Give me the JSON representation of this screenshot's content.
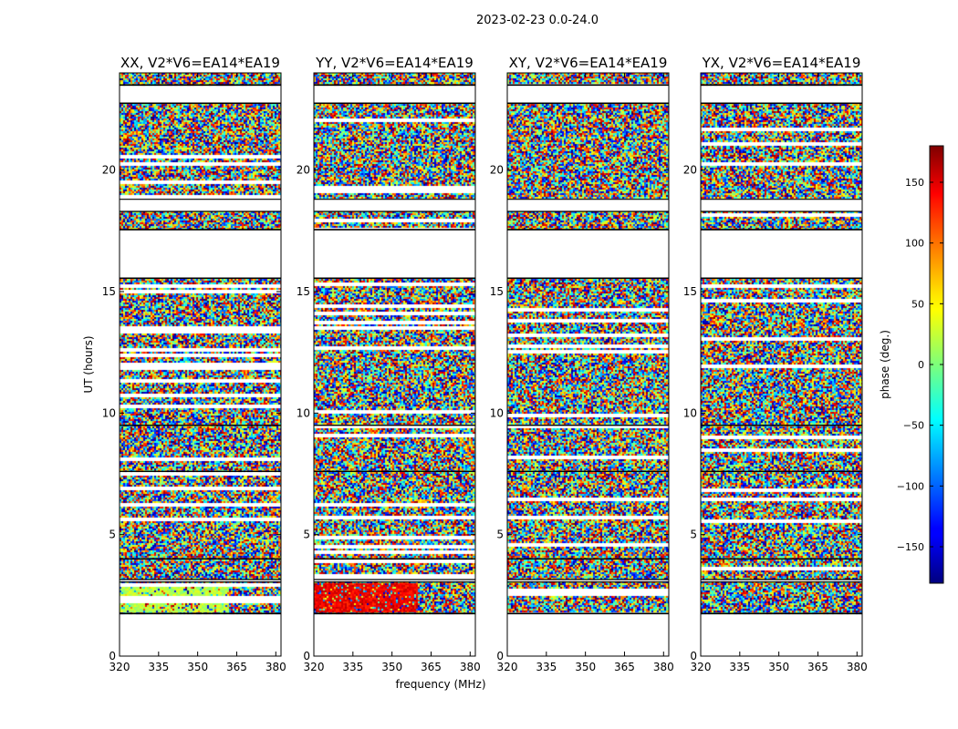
{
  "figure_title": "2023-02-23 0.0-24.0",
  "xlabel": "frequency (MHz)",
  "ylabel": "UT (hours)",
  "colorbar": {
    "label": "phase (deg.)",
    "ticks": [
      150,
      100,
      50,
      0,
      -50,
      -100,
      -150
    ],
    "tick_labels": [
      "150",
      "100",
      "50",
      "0",
      "−50",
      "−100",
      "−150"
    ],
    "range": [
      -180,
      180
    ],
    "colormap": "jet"
  },
  "panels": [
    {
      "title": "XX, V2*V6=EA14*EA19"
    },
    {
      "title": "YY, V2*V6=EA14*EA19"
    },
    {
      "title": "XY, V2*V6=EA14*EA19"
    },
    {
      "title": "YX, V2*V6=EA14*EA19"
    }
  ],
  "chart_data": {
    "type": "heatmap",
    "title": "2023-02-23 0.0-24.0",
    "xlabel": "frequency (MHz)",
    "ylabel": "UT (hours)",
    "x_range_mhz": [
      320,
      382
    ],
    "y_range_hours": [
      0,
      24
    ],
    "x_ticks": [
      320,
      335,
      350,
      365,
      380
    ],
    "y_ticks": [
      0,
      5,
      10,
      15,
      20
    ],
    "value_label": "phase (deg.)",
    "value_range": [
      -180,
      180
    ],
    "panels": [
      {
        "title": "XX, V2*V6=EA14*EA19",
        "feature": "near-constant phase ~0 to 40 deg at 1.8-3.0 UT for 320-362 MHz"
      },
      {
        "title": "YY, V2*V6=EA14*EA19",
        "feature": "near-constant phase ~120 to 160 deg at 1.8-3.0 UT for 320-360 MHz"
      },
      {
        "title": "XY, V2*V6=EA14*EA19",
        "feature": "noise-like phase throughout"
      },
      {
        "title": "YX, V2*V6=EA14*EA19",
        "feature": "noise-like phase throughout"
      }
    ],
    "data_coverage_hours": [
      [
        1.75,
        3.05
      ],
      [
        3.15,
        4.0
      ],
      [
        4.0,
        7.6
      ],
      [
        7.6,
        9.5
      ],
      [
        9.5,
        15.55
      ],
      [
        17.55,
        18.3
      ],
      [
        18.8,
        22.75
      ],
      [
        23.5,
        24.0
      ]
    ],
    "flagged_gaps_hours": [
      [
        0,
        1.75
      ],
      [
        15.55,
        17.55
      ],
      [
        22.75,
        23.5
      ]
    ],
    "grid": false
  }
}
